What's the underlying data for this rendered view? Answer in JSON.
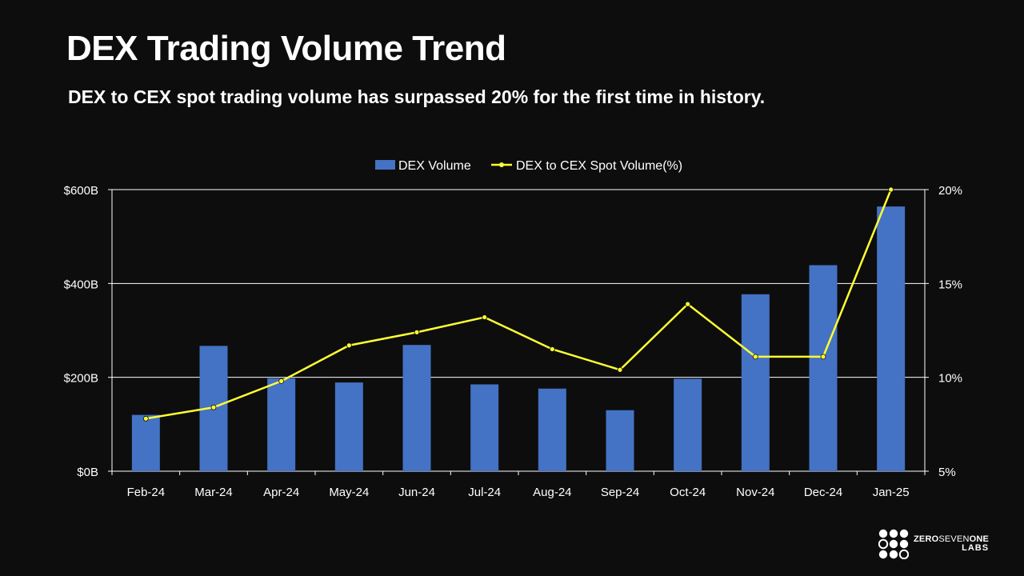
{
  "header": {
    "title": "DEX Trading Volume Trend",
    "subtitle": "DEX to CEX spot trading volume has surpassed 20% for the first time in history."
  },
  "colors": {
    "background": "#0d0d0d",
    "bar": "#4472c4",
    "line": "#ffff33",
    "text": "#ffffff",
    "grid": "#ffffff"
  },
  "chart_data": {
    "type": "bar",
    "title": "DEX Trading Volume Trend",
    "categories": [
      "Feb-24",
      "Mar-24",
      "Apr-24",
      "May-24",
      "Jun-24",
      "Jul-24",
      "Aug-24",
      "Sep-24",
      "Oct-24",
      "Nov-24",
      "Dec-24",
      "Jan-25"
    ],
    "series": [
      {
        "name": "DEX Volume",
        "type": "bar",
        "axis": "left",
        "values": [
          120,
          267,
          198,
          189,
          269,
          185,
          176,
          130,
          197,
          377,
          439,
          564
        ]
      },
      {
        "name": "DEX to CEX Spot Volume(%)",
        "type": "line",
        "axis": "right",
        "values": [
          7.8,
          8.4,
          9.8,
          11.7,
          12.4,
          13.2,
          11.5,
          10.4,
          13.9,
          11.1,
          11.1,
          20.0
        ]
      }
    ],
    "y_left": {
      "ylim": [
        0,
        600
      ],
      "ticks": [
        0,
        200,
        400,
        600
      ],
      "tick_labels": [
        "$0B",
        "$200B",
        "$400B",
        "$600B"
      ]
    },
    "y_right": {
      "ylim": [
        5,
        20
      ],
      "ticks": [
        5,
        10,
        15,
        20
      ],
      "tick_labels": [
        "5%",
        "10%",
        "15%",
        "20%"
      ]
    },
    "legend": [
      "DEX Volume",
      "DEX to CEX Spot Volume(%)"
    ],
    "legend_position": "top-center",
    "grid": true
  },
  "logo": {
    "line1_bold_a": "ZERO",
    "line1_thin": "SEVEN",
    "line1_bold_b": "ONE",
    "line2": "LABS"
  }
}
